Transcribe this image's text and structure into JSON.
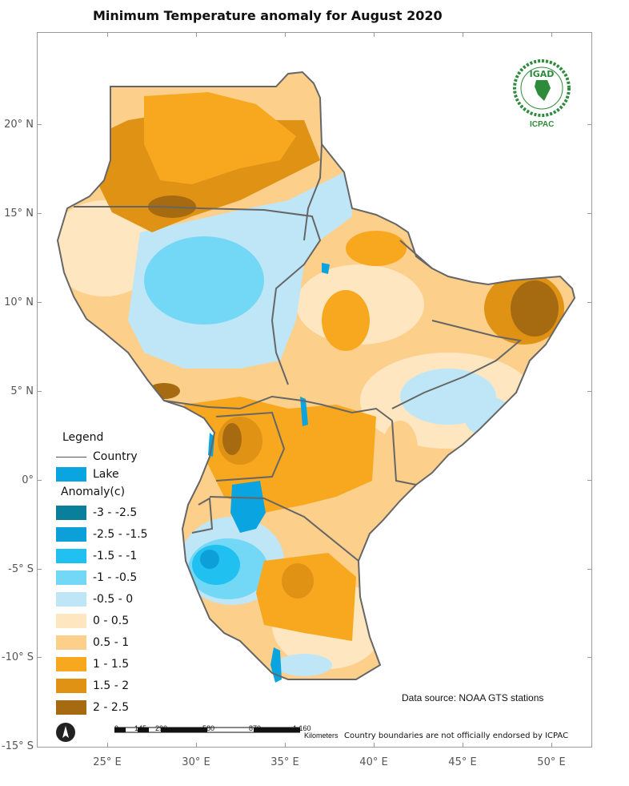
{
  "title": "Minimum Temperature  anomaly for  August 2020",
  "axes": {
    "lat_labels": [
      "20° N",
      "15° N",
      "10° N",
      "5° N",
      "0°",
      "-5° S",
      "-10° S",
      "-15° S"
    ],
    "lon_labels": [
      "25° E",
      "30° E",
      "35° E",
      "40° E",
      "45° E",
      "50° E"
    ]
  },
  "legend": {
    "title": "Legend",
    "country_label": "Country",
    "lake_label": "Lake",
    "lake_color": "#0aa4e0",
    "anomaly_title": "Anomaly(c)",
    "classes": [
      {
        "label": "-3 - -2.5",
        "color": "#0a7f9c"
      },
      {
        "label": "-2.5 - -1.5",
        "color": "#0d9fd8"
      },
      {
        "label": "-1.5 - -1",
        "color": "#20c0f0"
      },
      {
        "label": "-1 - -0.5",
        "color": "#73d8f5"
      },
      {
        "label": "-0.5 - 0",
        "color": "#bfe6f7"
      },
      {
        "label": "0 - 0.5",
        "color": "#fde6c0"
      },
      {
        "label": "0.5 - 1",
        "color": "#fccf8a"
      },
      {
        "label": "1 - 1.5",
        "color": "#f8a81e"
      },
      {
        "label": "1.5 - 2",
        "color": "#e09214"
      },
      {
        "label": "2 - 2.5",
        "color": "#a66a10"
      }
    ]
  },
  "logo": {
    "org_top": "IGAD",
    "org_bottom": "ICPAC"
  },
  "scale_bar": {
    "labels": [
      "0",
      "145",
      "290",
      "580",
      "870",
      "1,160"
    ],
    "unit": "Kilometers"
  },
  "data_source": "Data source: NOAA   GTS stations",
  "disclaimer": "Country boundaries are not officially endorsed by ICPAC"
}
